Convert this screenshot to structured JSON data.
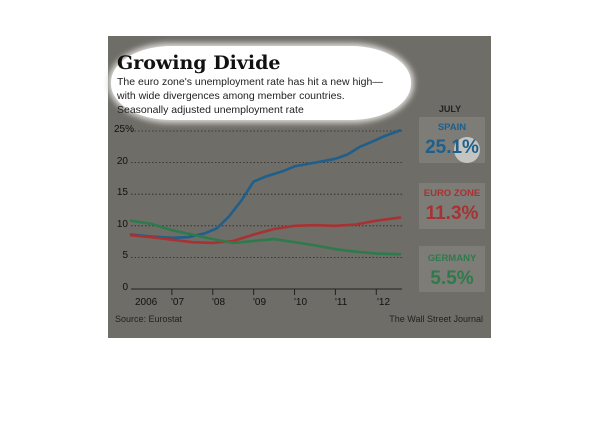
{
  "chart_data": {
    "type": "line",
    "title": "Growing Divide",
    "subtitle_lines": [
      "The euro zone's unemployment rate has hit a new high—",
      "with wide divergences among member countries.",
      "Seasonally adjusted unemployment rate"
    ],
    "latest_month_label": "JULY",
    "y_ticks": [
      "25%",
      "20",
      "15",
      "10",
      "5",
      "0"
    ],
    "x_ticks": [
      "2006",
      "'07",
      "'08",
      "'09",
      "'10",
      "'11",
      "'12"
    ],
    "ylim": [
      0,
      25
    ],
    "x_range": [
      2006.0,
      2012.58
    ],
    "grid": "dotted horizontal",
    "legend": "direct labels at right",
    "series": [
      {
        "name": "SPAIN",
        "value_label": "25.1%",
        "color": "#1f5f8b",
        "x": [
          2006.0,
          2006.5,
          2007.0,
          2007.4,
          2007.8,
          2008.1,
          2008.4,
          2008.7,
          2009.0,
          2009.3,
          2009.7,
          2010.0,
          2010.5,
          2011.0,
          2011.3,
          2011.6,
          2011.9,
          2012.2,
          2012.58
        ],
        "y": [
          8.6,
          8.3,
          8.1,
          8.2,
          8.8,
          9.6,
          11.5,
          14.0,
          17.0,
          17.8,
          18.6,
          19.4,
          20.0,
          20.6,
          21.3,
          22.5,
          23.3,
          24.2,
          25.1
        ]
      },
      {
        "name": "EURO ZONE",
        "value_label": "11.3%",
        "color": "#a83232",
        "x": [
          2006.0,
          2006.5,
          2007.0,
          2007.5,
          2008.0,
          2008.5,
          2009.0,
          2009.5,
          2010.0,
          2010.5,
          2011.0,
          2011.5,
          2012.0,
          2012.58
        ],
        "y": [
          8.5,
          8.2,
          7.8,
          7.4,
          7.3,
          7.6,
          8.6,
          9.5,
          10.0,
          10.1,
          10.0,
          10.2,
          10.8,
          11.3
        ]
      },
      {
        "name": "GERMANY",
        "value_label": "5.5%",
        "color": "#2e7a4c",
        "x": [
          2006.0,
          2006.5,
          2007.0,
          2007.5,
          2008.0,
          2008.5,
          2009.0,
          2009.5,
          2010.0,
          2010.5,
          2011.0,
          2011.5,
          2012.0,
          2012.58
        ],
        "y": [
          10.8,
          10.3,
          9.3,
          8.6,
          7.9,
          7.3,
          7.6,
          7.9,
          7.4,
          6.9,
          6.3,
          5.9,
          5.6,
          5.5
        ]
      }
    ]
  },
  "footer": {
    "source": "Source: Eurostat",
    "credit": "The Wall Street Journal"
  },
  "colors": {
    "panel": "#6f6d68",
    "label_box": "#7d7c77",
    "spain": "#1f5f8b",
    "euro_zone": "#a83232",
    "germany": "#2e7a4c"
  }
}
